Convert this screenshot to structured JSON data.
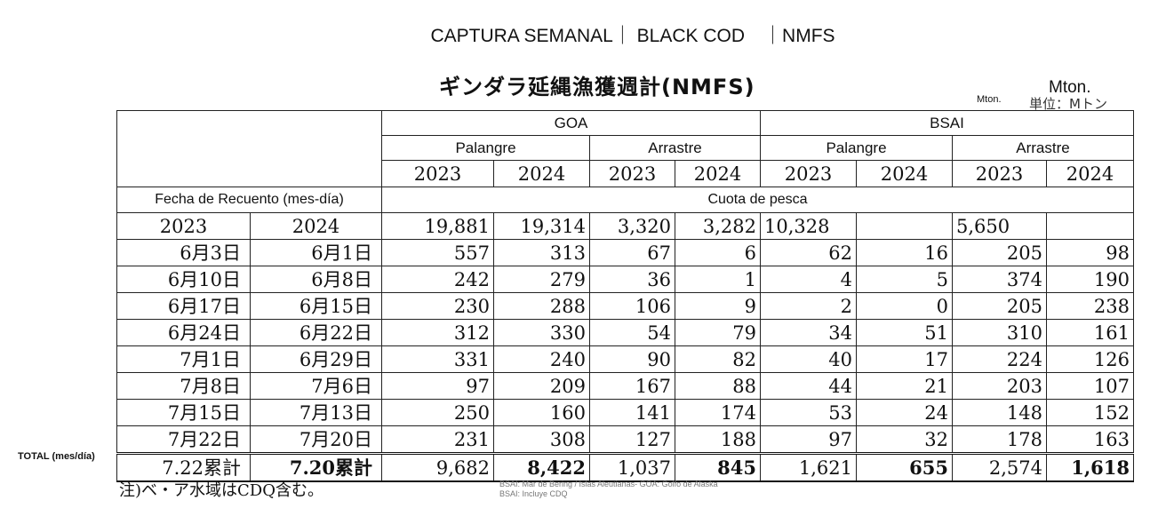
{
  "header": {
    "title": "CAPTURA SEMANAL｜ BLACK COD　｜NMFS",
    "jp_title": "ギンダラ延縄漁獲週計(NMFS)",
    "unit_small": "Mton.",
    "unit_big": "Mton.",
    "unit_jp": "単位：Mトン"
  },
  "table": {
    "groups": [
      "GOA",
      "BSAI"
    ],
    "gears": [
      "Palangre",
      "Arrastre",
      "Palangre",
      "Arrastre"
    ],
    "years": [
      "2023",
      "2024",
      "2023",
      "2024",
      "2023",
      "2024",
      "2023",
      "2024"
    ],
    "date_header": "Fecha de Recuento (mes-día)",
    "quota_header": "Cuota de pesca",
    "date_years": [
      "2023",
      "2024"
    ],
    "quota": [
      "19,881",
      "19,314",
      "3,320",
      "3,282",
      "10,328",
      "",
      "5,650",
      ""
    ],
    "rows": [
      {
        "d1": "6月3日",
        "d2": "6月1日",
        "v": [
          "557",
          "313",
          "67",
          "6",
          "62",
          "16",
          "205",
          "98"
        ]
      },
      {
        "d1": "6月10日",
        "d2": "6月8日",
        "v": [
          "242",
          "279",
          "36",
          "1",
          "4",
          "5",
          "374",
          "190"
        ]
      },
      {
        "d1": "6月17日",
        "d2": "6月15日",
        "v": [
          "230",
          "288",
          "106",
          "9",
          "2",
          "0",
          "205",
          "238"
        ]
      },
      {
        "d1": "6月24日",
        "d2": "6月22日",
        "v": [
          "312",
          "330",
          "54",
          "79",
          "34",
          "51",
          "310",
          "161"
        ]
      },
      {
        "d1": "7月1日",
        "d2": "6月29日",
        "v": [
          "331",
          "240",
          "90",
          "82",
          "40",
          "17",
          "224",
          "126"
        ]
      },
      {
        "d1": "7月8日",
        "d2": "7月6日",
        "v": [
          "97",
          "209",
          "167",
          "88",
          "44",
          "21",
          "203",
          "107"
        ]
      },
      {
        "d1": "7月15日",
        "d2": "7月13日",
        "v": [
          "250",
          "160",
          "141",
          "174",
          "53",
          "24",
          "148",
          "152"
        ]
      },
      {
        "d1": "7月22日",
        "d2": "7月20日",
        "v": [
          "231",
          "308",
          "127",
          "188",
          "97",
          "32",
          "178",
          "163"
        ]
      }
    ],
    "total": {
      "d1": "7.22累計",
      "d2": "7.20累計",
      "v": [
        "9,682",
        "8,422",
        "1,037",
        "845",
        "1,621",
        "655",
        "2,574",
        "1,618"
      ]
    }
  },
  "total_label": "TOTAL  (mes/día)",
  "footnote": "注)ベ・ア水域はCDQ含む。",
  "note_en": [
    "BSAI: Mar de Bering / Islas Aleutianas- GOA: Golfo de Alaska",
    "BSAI: Incluye CDQ"
  ]
}
